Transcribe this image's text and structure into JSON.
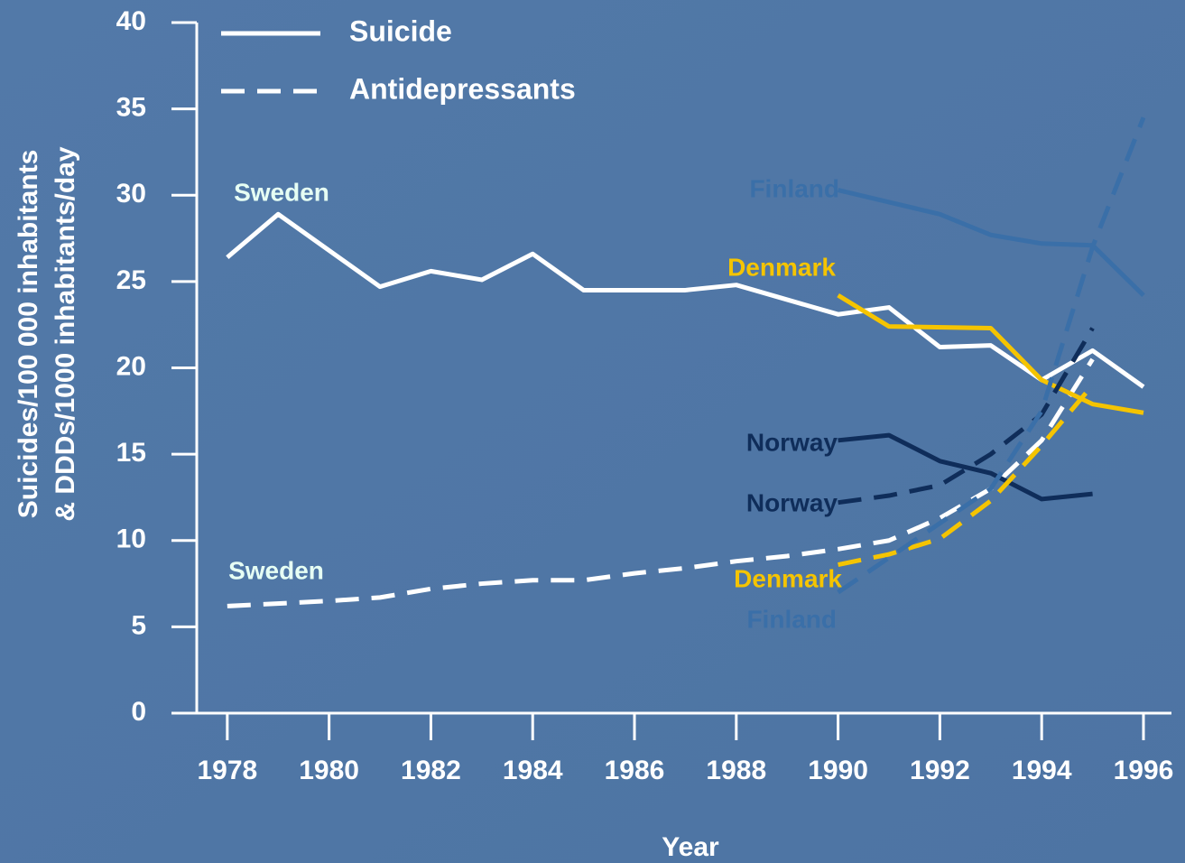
{
  "chart_data": {
    "type": "line",
    "y_label": [
      "Suicides/100 000 inhabitants",
      "& DDDs/1000 inhabitants/day"
    ],
    "x_label": "Year",
    "xlim": [
      1977.4,
      1996.55
    ],
    "xticks": [
      1978,
      1980,
      1982,
      1984,
      1986,
      1988,
      1990,
      1992,
      1994,
      1996
    ],
    "ylim": [
      0,
      40
    ],
    "yticks": [
      0,
      5,
      10,
      15,
      20,
      25,
      30,
      35,
      40
    ],
    "legend": [
      {
        "label": "Suicide",
        "dashed": false
      },
      {
        "label": "Antidepressants",
        "dashed": true
      }
    ],
    "series": [
      {
        "name": "Sweden",
        "color": "#ffffff",
        "label_color": "#e6fff4",
        "dashed": false,
        "x": [
          1978,
          1979,
          1981,
          1982,
          1983,
          1984,
          1985,
          1987,
          1988,
          1990,
          1991,
          1992,
          1993,
          1994,
          1995,
          1996
        ],
        "values": [
          26.4,
          28.9,
          24.7,
          25.6,
          25.1,
          26.6,
          24.5,
          24.5,
          24.8,
          23.1,
          23.5,
          21.2,
          21.3,
          19.3,
          21.0,
          18.9
        ]
      },
      {
        "name": "Sweden",
        "color": "#ffffff",
        "label_color": "#e6fff4",
        "dashed": true,
        "x": [
          1978,
          1980,
          1981,
          1982,
          1983,
          1984,
          1985,
          1986,
          1987,
          1988,
          1989,
          1990,
          1991,
          1992,
          1993,
          1994,
          1995
        ],
        "values": [
          6.2,
          6.5,
          6.7,
          7.2,
          7.5,
          7.7,
          7.7,
          8.1,
          8.4,
          8.8,
          9.1,
          9.5,
          10.0,
          11.3,
          13.0,
          15.8,
          20.5
        ]
      },
      {
        "name": "Finland",
        "color": "#3a6fa8",
        "label_color": "#3a6fa8",
        "dashed": false,
        "x": [
          1990,
          1991,
          1992,
          1993,
          1994,
          1995,
          1996
        ],
        "values": [
          30.3,
          29.6,
          28.9,
          27.7,
          27.2,
          27.1,
          24.2
        ]
      },
      {
        "name": "Denmark",
        "color": "#f5c400",
        "label_color": "#f5c400",
        "dashed": false,
        "x": [
          1990,
          1991,
          1993,
          1994,
          1995,
          1996
        ],
        "values": [
          24.2,
          22.4,
          22.3,
          19.3,
          17.9,
          17.4
        ]
      },
      {
        "name": "Norway",
        "color": "#0f2d5a",
        "label_color": "#0f2d5a",
        "dashed": false,
        "x": [
          1990,
          1991,
          1992,
          1993,
          1994,
          1995
        ],
        "values": [
          15.8,
          16.1,
          14.6,
          13.9,
          12.4,
          12.7
        ]
      },
      {
        "name": "Norway",
        "color": "#0f2d5a",
        "label_color": "#0f2d5a",
        "dashed": true,
        "x": [
          1990,
          1991,
          1992,
          1993,
          1994,
          1995
        ],
        "values": [
          12.2,
          12.6,
          13.2,
          15.0,
          17.3,
          22.3
        ]
      },
      {
        "name": "Denmark",
        "color": "#f5c400",
        "label_color": "#f5c400",
        "dashed": true,
        "x": [
          1990,
          1991,
          1992,
          1993,
          1994,
          1995
        ],
        "values": [
          8.6,
          9.2,
          10.1,
          12.3,
          15.5,
          19.0
        ]
      },
      {
        "name": "Finland",
        "color": "#3a6fa8",
        "label_color": "#3a6fa8",
        "dashed": true,
        "x": [
          1990,
          1991,
          1992,
          1993,
          1994,
          1995,
          1996
        ],
        "values": [
          7.0,
          9.0,
          11.0,
          13.0,
          17.5,
          27.0,
          34.5
        ]
      }
    ]
  }
}
